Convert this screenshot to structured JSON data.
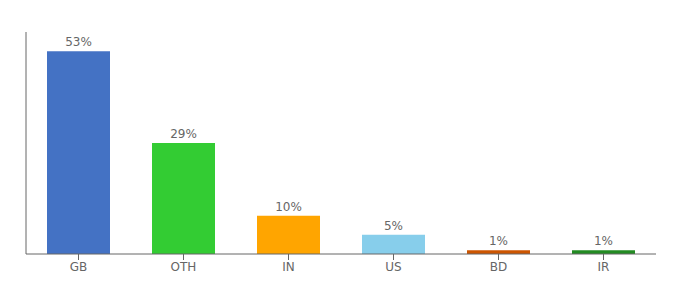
{
  "chart_data": {
    "type": "bar",
    "categories": [
      "GB",
      "OTH",
      "IN",
      "US",
      "BD",
      "IR"
    ],
    "values": [
      53,
      29,
      10,
      5,
      1,
      1
    ],
    "value_labels": [
      "53%",
      "29%",
      "10%",
      "5%",
      "1%",
      "1%"
    ],
    "data_labels": true,
    "colors": [
      "#4472C4",
      "#33CC33",
      "#FFA500",
      "#87CEEB",
      "#CC5500",
      "#228B22"
    ],
    "ylim": [
      0,
      58
    ],
    "tick_labels": "x",
    "grid": false
  }
}
